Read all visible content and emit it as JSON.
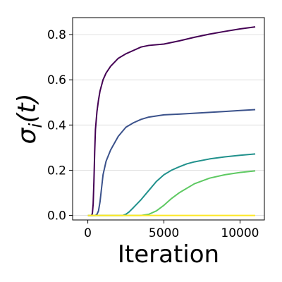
{
  "chart_data": {
    "type": "line",
    "title": "",
    "xlabel": "Iteration",
    "ylabel": "σ_i(t)",
    "ylabel_parts": {
      "base": "σ",
      "sub": "i",
      "arg": "(t)"
    },
    "xlim": [
      -1000,
      11600
    ],
    "ylim": [
      -0.02,
      0.875
    ],
    "xticks": [
      0,
      5000,
      10000
    ],
    "yticks": [
      0.0,
      0.2,
      0.4,
      0.6,
      0.8
    ],
    "ytick_labels": [
      "0.0",
      "0.2",
      "0.4",
      "0.6",
      "0.8"
    ],
    "grid": "horizontal",
    "legend": "none",
    "series": [
      {
        "color": "#440154",
        "x": [
          0,
          250,
          300,
          350,
          400,
          450,
          500,
          600,
          700,
          800,
          1000,
          1200,
          1500,
          2000,
          2500,
          3000,
          3500,
          4000,
          5000,
          6000,
          7000,
          8000,
          9000,
          10000,
          11000
        ],
        "y": [
          0.0,
          0.0,
          0.01,
          0.05,
          0.15,
          0.28,
          0.38,
          0.46,
          0.51,
          0.55,
          0.6,
          0.63,
          0.66,
          0.695,
          0.715,
          0.73,
          0.745,
          0.752,
          0.758,
          0.772,
          0.788,
          0.802,
          0.814,
          0.825,
          0.834
        ]
      },
      {
        "color": "#3b528b",
        "x": [
          0,
          500,
          600,
          700,
          800,
          900,
          1000,
          1200,
          1500,
          2000,
          2500,
          3000,
          3500,
          4000,
          5000,
          6000,
          7000,
          8000,
          9000,
          10000,
          11000
        ],
        "y": [
          0.0,
          0.0,
          0.005,
          0.02,
          0.06,
          0.12,
          0.18,
          0.24,
          0.29,
          0.35,
          0.39,
          0.41,
          0.425,
          0.435,
          0.445,
          0.448,
          0.452,
          0.456,
          0.46,
          0.464,
          0.468
        ]
      },
      {
        "color": "#21918c",
        "x": [
          0,
          2300,
          2500,
          2700,
          3000,
          3500,
          4000,
          4500,
          5000,
          5500,
          6000,
          6500,
          7000,
          8000,
          9000,
          10000,
          11000
        ],
        "y": [
          0.0,
          0.0,
          0.005,
          0.015,
          0.035,
          0.07,
          0.11,
          0.15,
          0.18,
          0.2,
          0.215,
          0.228,
          0.237,
          0.25,
          0.259,
          0.266,
          0.272
        ]
      },
      {
        "color": "#5ec962",
        "x": [
          0,
          3500,
          4000,
          4500,
          5000,
          5500,
          6000,
          7000,
          8000,
          9000,
          10000,
          11000
        ],
        "y": [
          0.0,
          0.0,
          0.005,
          0.02,
          0.045,
          0.075,
          0.1,
          0.14,
          0.165,
          0.18,
          0.19,
          0.197
        ]
      },
      {
        "color": "#fde725",
        "x": [
          0,
          11000
        ],
        "y": [
          0.0,
          0.0
        ]
      }
    ]
  }
}
